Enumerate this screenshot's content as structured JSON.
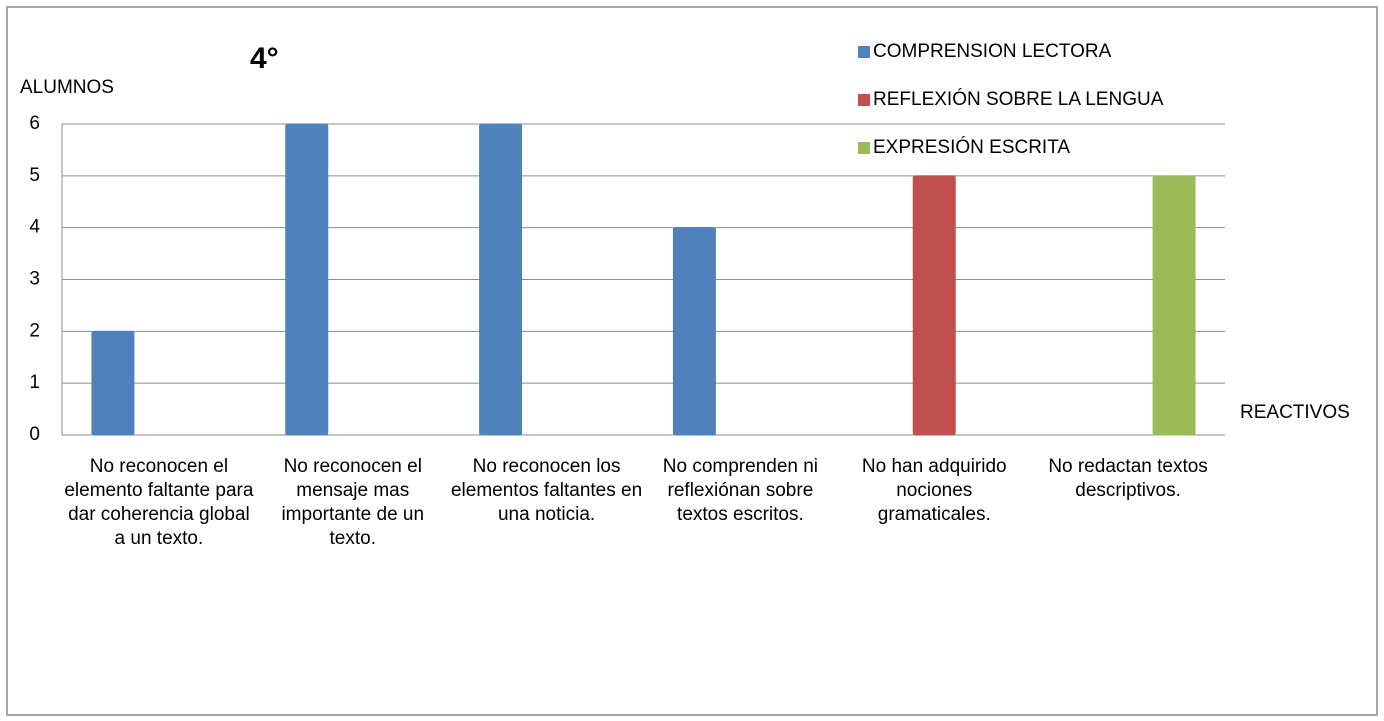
{
  "chart_data": {
    "type": "bar",
    "title": "4°",
    "y_label": "ALUMNOS",
    "x_label": "REACTIVOS",
    "categories": [
      "No reconocen el elemento faltante para dar coherencia global a un texto.",
      "No reconocen el mensaje mas importante de un texto.",
      "No reconocen los elementos faltantes en una noticia.",
      "No comprenden ni reflexiónan sobre textos escritos.",
      "No han adquirido nociones gramaticales.",
      "No redactan textos descriptivos."
    ],
    "series": [
      {
        "name": "COMPRENSION LECTORA",
        "color": "#4f81bd",
        "values": [
          2,
          6,
          6,
          4,
          null,
          null
        ]
      },
      {
        "name": "REFLEXIÓN SOBRE LA LENGUA",
        "color": "#c0504d",
        "values": [
          null,
          null,
          null,
          null,
          5,
          null
        ]
      },
      {
        "name": "EXPRESIÓN ESCRITA",
        "color": "#9bbb59",
        "values": [
          null,
          null,
          null,
          null,
          null,
          5
        ]
      }
    ],
    "ylim": [
      0,
      6
    ],
    "yticks": [
      0,
      1,
      2,
      3,
      4,
      5,
      6
    ],
    "grid": true,
    "legend": "top-right"
  }
}
